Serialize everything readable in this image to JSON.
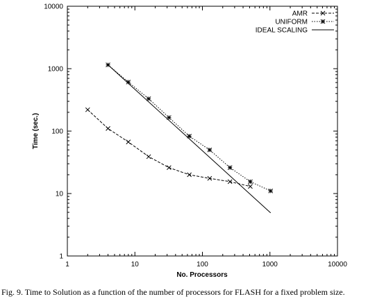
{
  "chart_data": {
    "type": "line",
    "title": "",
    "xlabel": "No. Processors",
    "ylabel": "Time (sec.)",
    "xscale": "log",
    "yscale": "log",
    "xlim": [
      1,
      10000
    ],
    "ylim": [
      1,
      10000
    ],
    "x_ticks": [
      "1",
      "10",
      "100",
      "1000",
      "10000"
    ],
    "y_ticks": [
      "1",
      "10",
      "100",
      "1000",
      "10000"
    ],
    "legend_position": "top-right",
    "grid": false,
    "series": [
      {
        "name": "AMR",
        "style": "dashed",
        "marker": "x",
        "x": [
          2,
          4,
          8,
          16,
          32,
          64,
          128,
          256,
          512
        ],
        "y": [
          220,
          110,
          67,
          39,
          26,
          20,
          17.5,
          15.5,
          13
        ]
      },
      {
        "name": "UNIFORM",
        "style": "dotted",
        "marker": "asterisk",
        "x": [
          4,
          8,
          16,
          32,
          64,
          128,
          256,
          512,
          1024
        ],
        "y": [
          1150,
          610,
          330,
          165,
          83,
          50,
          26,
          15.5,
          11
        ]
      },
      {
        "name": "IDEAL SCALING",
        "style": "solid",
        "marker": "none",
        "x": [
          4,
          1024
        ],
        "y": [
          1150,
          4.9
        ]
      }
    ]
  },
  "caption": "Fig. 9. Time to Solution as a function of the number of processors for FLASH for a fixed problem size."
}
